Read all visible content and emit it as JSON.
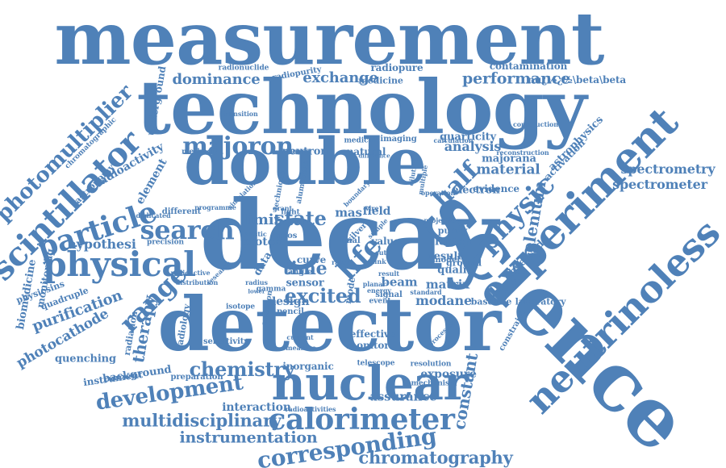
{
  "cloud": {
    "color": "#4f81b8",
    "words": [
      {
        "text": "measurement",
        "rot": 0
      },
      {
        "text": "technology",
        "rot": 0
      },
      {
        "text": "double",
        "rot": 0
      },
      {
        "text": "decay",
        "rot": 0
      },
      {
        "text": "detector",
        "rot": 0
      },
      {
        "text": "science",
        "rot": 45
      },
      {
        "text": "neutrinoless",
        "rot": -45
      },
      {
        "text": "experiment",
        "rot": -45
      },
      {
        "text": "nuclear",
        "rot": 0
      },
      {
        "text": "calorimeter",
        "rot": 0
      },
      {
        "text": "scintillator",
        "rot": -45
      },
      {
        "text": "physical",
        "rot": 0
      },
      {
        "text": "particle",
        "rot": -18
      },
      {
        "text": "search",
        "rot": 0
      },
      {
        "text": "physic",
        "rot": -45
      },
      {
        "text": "photomultiplier",
        "rot": -45
      },
      {
        "text": "corresponding",
        "rot": -8
      },
      {
        "text": "majoron",
        "rot": 0
      },
      {
        "text": "range",
        "rot": -45
      },
      {
        "text": "development",
        "rot": -8
      },
      {
        "text": "chemistry",
        "rot": 0
      },
      {
        "text": "multidisciplinary",
        "rot": 0
      },
      {
        "text": "instrumentation",
        "rot": 0
      },
      {
        "text": "chromatography",
        "rot": 0
      },
      {
        "text": "spectrometry",
        "rot": 0
      },
      {
        "text": "spectrometer",
        "rot": 0
      },
      {
        "text": "constant",
        "rot": -80
      },
      {
        "text": "performance",
        "rot": 0
      },
      {
        "text": "exchange",
        "rot": 0
      },
      {
        "text": "dominance",
        "rot": 0
      },
      {
        "text": "material",
        "rot": 0
      },
      {
        "text": "half",
        "rot": -45
      },
      {
        "text": "life",
        "rot": -45
      },
      {
        "text": "excited",
        "rot": 0
      },
      {
        "text": "state",
        "rot": 0
      },
      {
        "text": "limit",
        "rot": 0
      },
      {
        "text": "time",
        "rot": 0
      },
      {
        "text": "analysis",
        "rot": 0
      },
      {
        "text": "selenium",
        "rot": -80
      },
      {
        "text": "therapy",
        "rot": -80
      },
      {
        "text": "purification",
        "rot": -20
      },
      {
        "text": "photocathode",
        "rot": -30
      },
      {
        "text": "radioactivity",
        "rot": -30
      },
      {
        "text": "hypothesi",
        "rot": 0
      },
      {
        "text": "element",
        "rot": -60
      },
      {
        "text": "quenching",
        "rot": 0
      },
      {
        "text": "background",
        "rot": -8
      },
      {
        "text": "interaction",
        "rot": 0
      },
      {
        "text": "assurance",
        "rot": 0
      },
      {
        "text": "exposure",
        "rot": 0
      },
      {
        "text": "modane",
        "rot": 0
      },
      {
        "text": "beam",
        "rot": 0
      },
      {
        "text": "matrix",
        "rot": 0
      },
      {
        "text": "result",
        "rot": 0
      },
      {
        "text": "lepton",
        "rot": 0
      },
      {
        "text": "quality",
        "rot": 0
      },
      {
        "text": "electron",
        "rot": 0
      },
      {
        "text": "observed",
        "rot": -45
      },
      {
        "text": "activation",
        "rot": -45
      },
      {
        "text": "astrophysics",
        "rot": -45
      },
      {
        "text": "majorana",
        "rot": 0
      },
      {
        "text": "quarticity",
        "rot": 0
      },
      {
        "text": "natural",
        "rot": 0
      },
      {
        "text": "neutron",
        "rot": 0
      },
      {
        "text": "contamination",
        "rot": 0
      },
      {
        "text": "radiopure",
        "rot": 0
      },
      {
        "text": "medicine",
        "rot": 0
      },
      {
        "text": "radiopurity",
        "rot": -10
      },
      {
        "text": "radionuclide",
        "rot": 0
      },
      {
        "text": "nu¿½¿½\\beta\\beta",
        "rot": 0
      },
      {
        "text": "biomedicine",
        "rot": -80
      },
      {
        "text": "monitoring",
        "rot": -80
      },
      {
        "text": "physicsins",
        "rot": -20
      },
      {
        "text": "quadruple",
        "rot": -20
      },
      {
        "text": "astronomy",
        "rot": -45
      },
      {
        "text": "chromatographic",
        "rot": -45
      },
      {
        "text": "underground",
        "rot": -80
      },
      {
        "text": "instrument",
        "rot": -8
      },
      {
        "text": "radiation",
        "rot": -80
      },
      {
        "text": "radiology",
        "rot": -80
      },
      {
        "text": "preparation",
        "rot": 0
      },
      {
        "text": "sensitivity",
        "rot": 0
      },
      {
        "text": "effective",
        "rot": 0
      },
      {
        "text": "monitor",
        "rot": 0
      },
      {
        "text": "inorganic",
        "rot": 0
      },
      {
        "text": "telescope",
        "rot": 0
      },
      {
        "text": "resolution",
        "rot": 0
      },
      {
        "text": "mechanism",
        "rot": 0
      },
      {
        "text": "radioactivities",
        "rot": 0
      },
      {
        "text": "design",
        "rot": 0
      },
      {
        "text": "sensor",
        "rot": 0
      },
      {
        "text": "proton",
        "rot": 0
      },
      {
        "text": "field",
        "rot": 0
      },
      {
        "text": "mas",
        "rot": 0
      },
      {
        "text": "data",
        "rot": -60
      },
      {
        "text": "curve",
        "rot": 0
      },
      {
        "text": "angle",
        "rot": 0
      },
      {
        "text": "source",
        "rot": 0
      },
      {
        "text": "method",
        "rot": 0
      },
      {
        "text": "transition",
        "rot": 0
      },
      {
        "text": "imaging",
        "rot": 0
      },
      {
        "text": "medical",
        "rot": 0
      },
      {
        "text": "construction",
        "rot": 0
      },
      {
        "text": "laboratory",
        "rot": 0
      },
      {
        "text": "baseline",
        "rot": 0
      },
      {
        "text": "emission",
        "rot": -80
      },
      {
        "text": "isotope",
        "rot": 0
      },
      {
        "text": "current",
        "rot": 0
      },
      {
        "text": "measure",
        "rot": 0
      },
      {
        "text": "different",
        "rot": 0
      },
      {
        "text": "dedicated",
        "rot": 0
      },
      {
        "text": "precision",
        "rot": 0
      },
      {
        "text": "distribution",
        "rot": 0
      },
      {
        "text": "evidence",
        "rot": 0
      },
      {
        "text": "purity",
        "rot": 0
      },
      {
        "text": "model",
        "rot": 0
      },
      {
        "text": "ground",
        "rot": 0
      },
      {
        "text": "value",
        "rot": 0
      },
      {
        "text": "signal",
        "rot": 0
      },
      {
        "text": "mode",
        "rot": -80
      },
      {
        "text": "cmos",
        "rot": 0
      },
      {
        "text": "light",
        "rot": 0
      },
      {
        "text": "grant",
        "rot": 0
      },
      {
        "text": "pencil",
        "rot": 0
      },
      {
        "text": "standard",
        "rot": 0
      },
      {
        "text": "constraint",
        "rot": -60
      },
      {
        "text": "plastic",
        "rot": 0
      },
      {
        "text": "final",
        "rot": 0
      },
      {
        "text": "silver",
        "rot": -45
      },
      {
        "text": "reconstruction",
        "rot": 0
      },
      {
        "text": "calculation",
        "rot": 0
      },
      {
        "text": "aluminium",
        "rot": -80
      },
      {
        "text": "technique",
        "rot": -80
      },
      {
        "text": "research",
        "rot": -45
      },
      {
        "text": "processes",
        "rot": -45
      },
      {
        "text": "operation",
        "rot": 0
      },
      {
        "text": "programme",
        "rot": 0
      },
      {
        "text": "projection",
        "rot": 0
      },
      {
        "text": "gamma",
        "rot": 0
      },
      {
        "text": "energy",
        "rot": 0
      },
      {
        "text": "event",
        "rot": 0
      },
      {
        "text": "planar",
        "rot": 0
      },
      {
        "text": "rate",
        "rot": 0
      },
      {
        "text": "wire",
        "rot": 0
      },
      {
        "text": "link",
        "rot": 0
      },
      {
        "text": "cut",
        "rot": 0
      },
      {
        "text": "radioactive",
        "rot": 0
      },
      {
        "text": "sample",
        "rot": -45
      },
      {
        "text": "difference",
        "rot": 0
      },
      {
        "text": "dilution",
        "rot": -80
      },
      {
        "text": "multiple",
        "rot": -80
      },
      {
        "text": "simulation",
        "rot": -45
      },
      {
        "text": "boundary",
        "rot": -45
      },
      {
        "text": "radius",
        "rot": 0
      },
      {
        "text": "lower",
        "rot": 0
      },
      {
        "text": "result",
        "rot": 0
      }
    ]
  }
}
